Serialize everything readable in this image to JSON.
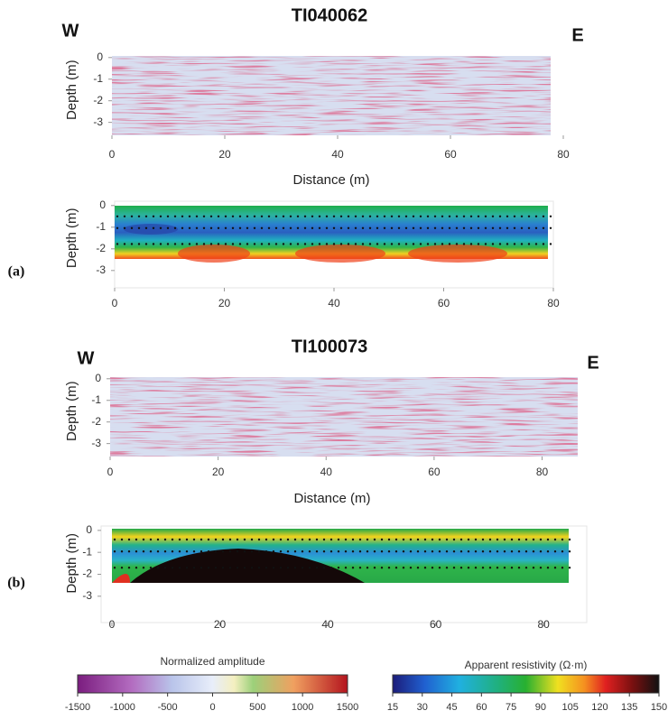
{
  "panels": [
    {
      "label": "(a)",
      "title": "TI040062",
      "west": "W",
      "east": "E",
      "radargram": {
        "ylabel": "Depth (m)",
        "xlabel": "Distance (m)",
        "xlim": [
          0,
          80
        ],
        "xticks": [
          0,
          20,
          40,
          60,
          80
        ],
        "ylim": [
          -3.6,
          0.2
        ],
        "yticks": [
          0,
          -1,
          -2,
          -3
        ]
      },
      "resistivity": {
        "ylabel": "Depth (m)",
        "xlim": [
          0,
          80
        ],
        "xticks": [
          0,
          20,
          40,
          60,
          80
        ],
        "ylim": [
          -3.8,
          0.2
        ],
        "yticks": [
          0,
          -1,
          -2,
          -3
        ]
      }
    },
    {
      "label": "(b)",
      "title": "TI100073",
      "west": "W",
      "east": "E",
      "radargram": {
        "ylabel": "Depth (m)",
        "xlabel": "Distance (m)",
        "xlim": [
          0,
          86.6
        ],
        "xticks": [
          0,
          20,
          40,
          60,
          80
        ],
        "ylim": [
          -3.6,
          0.2
        ],
        "yticks": [
          0,
          -1,
          -2,
          -3
        ]
      },
      "resistivity": {
        "ylabel": "Depth (m)",
        "xlim": [
          -2,
          88
        ],
        "xticks": [
          0,
          20,
          40,
          60,
          80
        ],
        "ylim": [
          -4.2,
          0.2
        ],
        "yticks": [
          0,
          -1,
          -2,
          -3
        ]
      }
    }
  ],
  "colorbars": [
    {
      "title": "Normalized amplitude",
      "lim": [
        -1500,
        1500
      ],
      "ticks": [
        -1500,
        -1000,
        -500,
        0,
        500,
        1000,
        1500
      ]
    },
    {
      "title": "Apparent resistivity (Ω·m)",
      "lim": [
        15,
        150
      ],
      "ticks": [
        15,
        30,
        45,
        60,
        75,
        90,
        105,
        120,
        135,
        150
      ]
    }
  ]
}
